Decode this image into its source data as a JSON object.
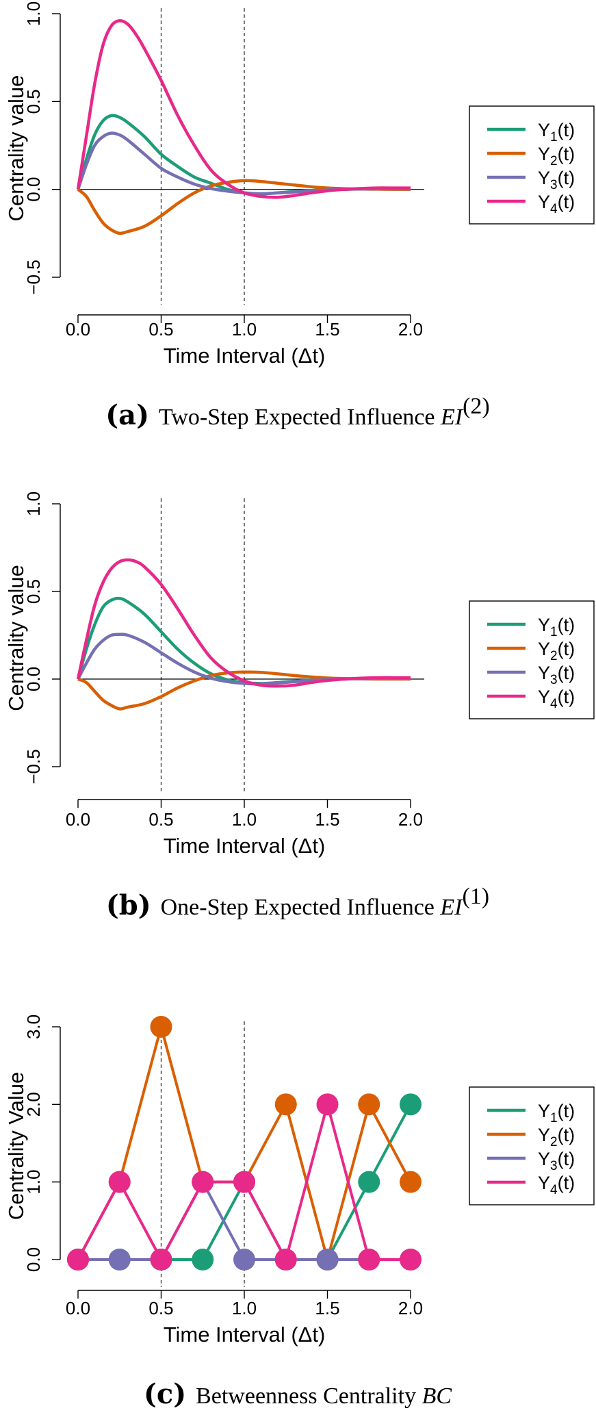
{
  "chart_data": [
    {
      "type": "line",
      "panel": "a",
      "ylabel": "Centrality value",
      "xlabel": "Time Interval (Δt)",
      "xlim": [
        0,
        2
      ],
      "ylim": [
        -0.5,
        1.0
      ],
      "xticks": [
        "0.0",
        "0.5",
        "1.0",
        "1.5",
        "2.0"
      ],
      "yticks": [
        "−0.5",
        "0.0",
        "0.5",
        "1.0"
      ],
      "vlines": [
        0.5,
        1.0
      ],
      "hline": 0,
      "caption": {
        "letter": "(a)",
        "text": "Two-Step Expected Influence",
        "math": "EI",
        "sup": "(2)"
      },
      "legend": [
        "Y1(t)",
        "Y2(t)",
        "Y3(t)",
        "Y4(t)"
      ],
      "series": [
        {
          "name": "Y1(t)",
          "color": "#1b9e77",
          "x": [
            0,
            0.05,
            0.1,
            0.15,
            0.2,
            0.25,
            0.3,
            0.4,
            0.5,
            0.6,
            0.7,
            0.8,
            0.9,
            1.0,
            1.1,
            1.2,
            1.3,
            1.4,
            1.5,
            1.6,
            1.7,
            1.8,
            1.9,
            2.0
          ],
          "y": [
            0,
            0.17,
            0.31,
            0.39,
            0.42,
            0.41,
            0.38,
            0.3,
            0.2,
            0.13,
            0.07,
            0.035,
            0.0,
            -0.02,
            -0.025,
            -0.02,
            -0.012,
            -0.006,
            -0.002,
            0.0,
            0.003,
            0.004,
            0.004,
            0.004
          ]
        },
        {
          "name": "Y2(t)",
          "color": "#d95f02",
          "x": [
            0,
            0.05,
            0.1,
            0.15,
            0.2,
            0.25,
            0.3,
            0.4,
            0.5,
            0.6,
            0.7,
            0.8,
            0.9,
            1.0,
            1.1,
            1.2,
            1.3,
            1.4,
            1.5,
            1.6,
            1.7,
            1.8,
            1.9,
            2.0
          ],
          "y": [
            0,
            -0.04,
            -0.12,
            -0.19,
            -0.23,
            -0.25,
            -0.24,
            -0.21,
            -0.15,
            -0.08,
            -0.02,
            0.02,
            0.04,
            0.05,
            0.045,
            0.035,
            0.025,
            0.015,
            0.008,
            0.004,
            0.002,
            0.001,
            0.0,
            0.0
          ]
        },
        {
          "name": "Y3(t)",
          "color": "#7570b3",
          "x": [
            0,
            0.05,
            0.1,
            0.15,
            0.2,
            0.25,
            0.3,
            0.4,
            0.5,
            0.6,
            0.7,
            0.8,
            0.9,
            1.0,
            1.1,
            1.2,
            1.3,
            1.4,
            1.5,
            1.6,
            1.7,
            1.8,
            1.9,
            2.0
          ],
          "y": [
            0,
            0.14,
            0.25,
            0.3,
            0.32,
            0.31,
            0.28,
            0.2,
            0.12,
            0.07,
            0.03,
            0.005,
            -0.01,
            -0.02,
            -0.025,
            -0.02,
            -0.015,
            -0.008,
            -0.003,
            0.0,
            0.002,
            0.003,
            0.003,
            0.003
          ]
        },
        {
          "name": "Y4(t)",
          "color": "#e7298a",
          "x": [
            0,
            0.05,
            0.1,
            0.15,
            0.2,
            0.25,
            0.3,
            0.35,
            0.4,
            0.5,
            0.6,
            0.7,
            0.8,
            0.9,
            1.0,
            1.1,
            1.2,
            1.3,
            1.4,
            1.5,
            1.6,
            1.7,
            1.8,
            1.9,
            2.0
          ],
          "y": [
            0,
            0.3,
            0.6,
            0.82,
            0.93,
            0.96,
            0.94,
            0.88,
            0.8,
            0.62,
            0.42,
            0.25,
            0.11,
            0.03,
            -0.02,
            -0.04,
            -0.045,
            -0.035,
            -0.02,
            -0.008,
            0.0,
            0.005,
            0.008,
            0.008,
            0.008
          ]
        }
      ]
    },
    {
      "type": "line",
      "panel": "b",
      "ylabel": "Centrality value",
      "xlabel": "Time Interval (Δt)",
      "xlim": [
        0,
        2
      ],
      "ylim": [
        -0.5,
        1.0
      ],
      "xticks": [
        "0.0",
        "0.5",
        "1.0",
        "1.5",
        "2.0"
      ],
      "yticks": [
        "−0.5",
        "0.0",
        "0.5",
        "1.0"
      ],
      "vlines": [
        0.5,
        1.0
      ],
      "hline": 0,
      "caption": {
        "letter": "(b)",
        "text": "One-Step Expected Influence",
        "math": "EI",
        "sup": "(1)"
      },
      "legend": [
        "Y1(t)",
        "Y2(t)",
        "Y3(t)",
        "Y4(t)"
      ],
      "series": [
        {
          "name": "Y1(t)",
          "color": "#1b9e77",
          "x": [
            0,
            0.05,
            0.1,
            0.15,
            0.2,
            0.25,
            0.3,
            0.4,
            0.5,
            0.6,
            0.7,
            0.8,
            0.9,
            1.0,
            1.1,
            1.2,
            1.3,
            1.4,
            1.5,
            1.6,
            1.7,
            1.8,
            1.9,
            2.0
          ],
          "y": [
            0,
            0.17,
            0.31,
            0.41,
            0.45,
            0.46,
            0.44,
            0.37,
            0.27,
            0.17,
            0.09,
            0.03,
            -0.005,
            -0.02,
            -0.025,
            -0.02,
            -0.012,
            -0.006,
            -0.002,
            0.0,
            0.003,
            0.004,
            0.004,
            0.004
          ]
        },
        {
          "name": "Y2(t)",
          "color": "#d95f02",
          "x": [
            0,
            0.05,
            0.1,
            0.15,
            0.2,
            0.25,
            0.3,
            0.4,
            0.5,
            0.6,
            0.7,
            0.8,
            0.9,
            1.0,
            1.1,
            1.2,
            1.3,
            1.4,
            1.5,
            1.6,
            1.7,
            1.8,
            1.9,
            2.0
          ],
          "y": [
            0,
            -0.02,
            -0.07,
            -0.12,
            -0.15,
            -0.17,
            -0.16,
            -0.14,
            -0.1,
            -0.05,
            -0.01,
            0.02,
            0.035,
            0.04,
            0.038,
            0.03,
            0.02,
            0.012,
            0.006,
            0.003,
            0.001,
            0.0,
            0.0,
            0.0
          ]
        },
        {
          "name": "Y3(t)",
          "color": "#7570b3",
          "x": [
            0,
            0.05,
            0.1,
            0.15,
            0.2,
            0.25,
            0.3,
            0.4,
            0.5,
            0.6,
            0.7,
            0.8,
            0.9,
            1.0,
            1.1,
            1.2,
            1.3,
            1.4,
            1.5,
            1.6,
            1.7,
            1.8,
            1.9,
            2.0
          ],
          "y": [
            0,
            0.09,
            0.17,
            0.22,
            0.25,
            0.255,
            0.25,
            0.21,
            0.15,
            0.09,
            0.04,
            0.005,
            -0.015,
            -0.025,
            -0.028,
            -0.022,
            -0.015,
            -0.008,
            -0.003,
            0.0,
            0.002,
            0.003,
            0.003,
            0.003
          ]
        },
        {
          "name": "Y4(t)",
          "color": "#e7298a",
          "x": [
            0,
            0.05,
            0.1,
            0.15,
            0.2,
            0.25,
            0.3,
            0.35,
            0.4,
            0.5,
            0.6,
            0.7,
            0.8,
            0.9,
            1.0,
            1.1,
            1.2,
            1.3,
            1.4,
            1.5,
            1.6,
            1.7,
            1.8,
            1.9,
            2.0
          ],
          "y": [
            0,
            0.22,
            0.42,
            0.55,
            0.63,
            0.67,
            0.68,
            0.67,
            0.64,
            0.54,
            0.4,
            0.25,
            0.12,
            0.04,
            -0.01,
            -0.035,
            -0.04,
            -0.035,
            -0.02,
            -0.008,
            0.0,
            0.005,
            0.008,
            0.008,
            0.008
          ]
        }
      ]
    },
    {
      "type": "line",
      "panel": "c",
      "markers": true,
      "ylabel": "Centrality Value",
      "xlabel": "Time Interval (Δt)",
      "xlim": [
        0,
        2
      ],
      "ylim": [
        0,
        3.0
      ],
      "xticks": [
        "0.0",
        "0.5",
        "1.0",
        "1.5",
        "2.0"
      ],
      "yticks": [
        "0.0",
        "1.0",
        "2.0",
        "3.0"
      ],
      "vlines": [
        0.5,
        1.0
      ],
      "caption": {
        "letter": "(c)",
        "text": "Betweenness Centrality",
        "math": "BC",
        "sup": ""
      },
      "legend": [
        "Y1(t)",
        "Y2(t)",
        "Y3(t)",
        "Y4(t)"
      ],
      "series": [
        {
          "name": "Y1(t)",
          "color": "#1b9e77",
          "x": [
            0,
            0.25,
            0.5,
            0.75,
            1.0,
            1.25,
            1.5,
            1.75,
            2.0
          ],
          "y": [
            0,
            0,
            0,
            0,
            1,
            0,
            0,
            1,
            2
          ]
        },
        {
          "name": "Y2(t)",
          "color": "#d95f02",
          "x": [
            0,
            0.25,
            0.5,
            0.75,
            1.0,
            1.25,
            1.5,
            1.75,
            2.0
          ],
          "y": [
            0,
            1,
            3,
            1,
            1,
            2,
            0,
            2,
            1
          ]
        },
        {
          "name": "Y3(t)",
          "color": "#7570b3",
          "x": [
            0,
            0.25,
            0.5,
            0.75,
            1.0,
            1.25,
            1.5,
            1.75,
            2.0
          ],
          "y": [
            0,
            0,
            0,
            1,
            0,
            0,
            0,
            0,
            0
          ]
        },
        {
          "name": "Y4(t)",
          "color": "#e7298a",
          "x": [
            0,
            0.25,
            0.5,
            0.75,
            1.0,
            1.25,
            1.5,
            1.75,
            2.0
          ],
          "y": [
            0,
            1,
            0,
            1,
            1,
            0,
            2,
            0,
            0
          ]
        }
      ]
    }
  ]
}
